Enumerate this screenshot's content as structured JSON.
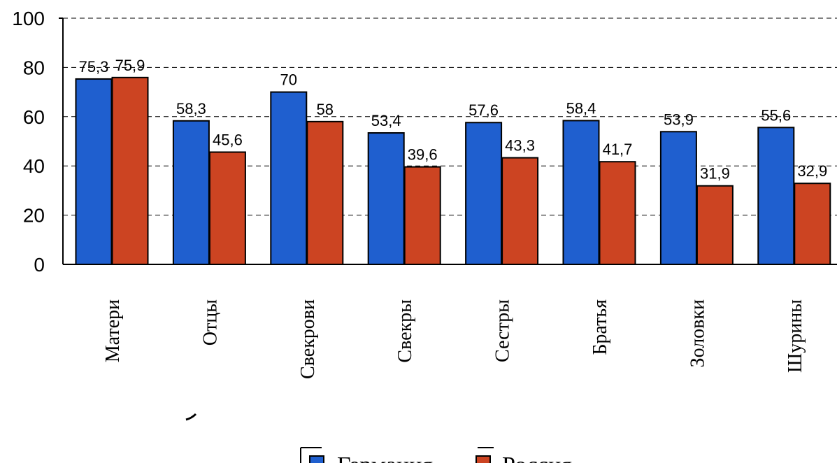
{
  "chart_data": {
    "type": "bar",
    "categories": [
      "Матери",
      "Отцы",
      "Свекрови",
      "Свекры",
      "Сестры",
      "Братья",
      "Золовки",
      "Шурины"
    ],
    "series": [
      {
        "name": "Германия",
        "color": "#1f5fcf",
        "values": [
          75.3,
          58.3,
          70,
          53.4,
          57.6,
          58.4,
          53.9,
          55.6
        ],
        "labels": [
          "75,3",
          "58,3",
          "70",
          "53,4",
          "57,6",
          "58,4",
          "53,9",
          "55,6"
        ]
      },
      {
        "name": "Россия",
        "color": "#cc4422",
        "values": [
          75.9,
          45.6,
          58,
          39.6,
          43.3,
          41.7,
          31.9,
          32.9
        ],
        "labels": [
          "75,9",
          "45,6",
          "58",
          "39,6",
          "43,3",
          "41,7",
          "31,9",
          "32,9"
        ]
      }
    ],
    "yticks": [
      "0",
      "20",
      "40",
      "60",
      "80",
      "100"
    ],
    "ylim": [
      0,
      100
    ],
    "grid": true,
    "legend_position": "bottom-center"
  }
}
